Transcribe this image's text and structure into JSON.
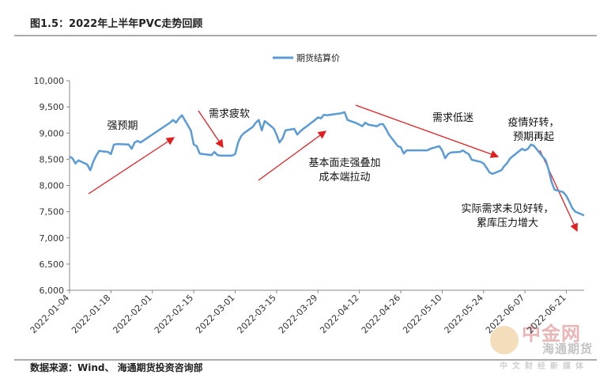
{
  "chart_data": {
    "type": "line",
    "title": "图1.5：2022年上半年PVC走势回顾",
    "source": "数据来源：Wind、 海通期货投资咨询部",
    "watermark": [
      "中金网",
      "海通期货",
      "中文财经新媒体"
    ],
    "x": [
      "2022-01-04",
      "2022-01-05",
      "2022-01-06",
      "2022-01-07",
      "2022-01-10",
      "2022-01-11",
      "2022-01-12",
      "2022-01-13",
      "2022-01-14",
      "2022-01-17",
      "2022-01-18",
      "2022-01-19",
      "2022-01-20",
      "2022-01-21",
      "2022-01-24",
      "2022-01-25",
      "2022-01-26",
      "2022-01-27",
      "2022-01-28",
      "2022-02-07",
      "2022-02-08",
      "2022-02-09",
      "2022-02-10",
      "2022-02-11",
      "2022-02-14",
      "2022-02-15",
      "2022-02-16",
      "2022-02-17",
      "2022-02-18",
      "2022-02-21",
      "2022-02-22",
      "2022-02-23",
      "2022-02-24",
      "2022-02-25",
      "2022-02-28",
      "2022-03-01",
      "2022-03-02",
      "2022-03-03",
      "2022-03-04",
      "2022-03-07",
      "2022-03-08",
      "2022-03-09",
      "2022-03-10",
      "2022-03-11",
      "2022-03-14",
      "2022-03-15",
      "2022-03-16",
      "2022-03-17",
      "2022-03-18",
      "2022-03-21",
      "2022-03-22",
      "2022-03-23",
      "2022-03-24",
      "2022-03-25",
      "2022-03-28",
      "2022-03-29",
      "2022-03-30",
      "2022-03-31",
      "2022-04-01",
      "2022-04-06",
      "2022-04-07",
      "2022-04-08",
      "2022-04-11",
      "2022-04-12",
      "2022-04-13",
      "2022-04-14",
      "2022-04-15",
      "2022-04-18",
      "2022-04-19",
      "2022-04-20",
      "2022-04-21",
      "2022-04-22",
      "2022-04-25",
      "2022-04-26",
      "2022-04-27",
      "2022-04-28",
      "2022-04-29",
      "2022-05-05",
      "2022-05-06",
      "2022-05-09",
      "2022-05-10",
      "2022-05-11",
      "2022-05-12",
      "2022-05-13",
      "2022-05-16",
      "2022-05-17",
      "2022-05-18",
      "2022-05-19",
      "2022-05-20",
      "2022-05-23",
      "2022-05-24",
      "2022-05-25",
      "2022-05-26",
      "2022-05-27",
      "2022-05-30",
      "2022-05-31",
      "2022-06-01",
      "2022-06-02",
      "2022-06-06",
      "2022-06-07",
      "2022-06-08",
      "2022-06-09",
      "2022-06-10",
      "2022-06-13",
      "2022-06-14",
      "2022-06-15",
      "2022-06-16",
      "2022-06-17",
      "2022-06-20",
      "2022-06-21",
      "2022-06-22",
      "2022-06-23",
      "2022-06-24",
      "2022-06-27"
    ],
    "series": [
      {
        "name": "期货结算价",
        "color": "#5b9bd5",
        "values": [
          8550,
          8520,
          8420,
          8480,
          8400,
          8290,
          8450,
          8570,
          8660,
          8640,
          8600,
          8780,
          8790,
          8790,
          8780,
          8700,
          8820,
          8850,
          8820,
          9200,
          9250,
          9200,
          9280,
          9340,
          9050,
          8780,
          8750,
          8610,
          8600,
          8580,
          8640,
          8580,
          8570,
          8570,
          8570,
          8600,
          8820,
          8940,
          9000,
          9120,
          9200,
          9250,
          9050,
          9230,
          9090,
          8970,
          8820,
          8900,
          9050,
          9080,
          8970,
          9030,
          9080,
          9120,
          9250,
          9300,
          9280,
          9350,
          9340,
          9380,
          9400,
          9250,
          9190,
          9160,
          9130,
          9200,
          9160,
          9130,
          9170,
          9170,
          9080,
          8970,
          8750,
          8730,
          8610,
          8670,
          8670,
          8670,
          8700,
          8750,
          8670,
          8520,
          8600,
          8630,
          8640,
          8670,
          8630,
          8600,
          8490,
          8450,
          8420,
          8340,
          8250,
          8220,
          8290,
          8370,
          8430,
          8520,
          8700,
          8670,
          8700,
          8780,
          8760,
          8550,
          8480,
          8300,
          8070,
          7920,
          7870,
          7800,
          7690,
          7570,
          7500,
          7430
        ]
      }
    ],
    "xlim": [
      "2022-01-04",
      "2022-06-27"
    ],
    "xticks": [
      "2022-01-04",
      "2022-01-18",
      "2022-02-01",
      "2022-02-15",
      "2022-03-01",
      "2022-03-15",
      "2022-03-29",
      "2022-04-12",
      "2022-04-26",
      "2022-05-10",
      "2022-05-24",
      "2022-06-07",
      "2022-06-21"
    ],
    "ylim": [
      6000,
      10000
    ],
    "yticks": [
      {
        "value": 6000,
        "label": "6,000"
      },
      {
        "value": 6500,
        "label": "6,500"
      },
      {
        "value": 7000,
        "label": "7,000"
      },
      {
        "value": 7500,
        "label": "7,500"
      },
      {
        "value": 8000,
        "label": "8,000"
      },
      {
        "value": 8500,
        "label": "8,500"
      },
      {
        "value": 9000,
        "label": "9,000"
      },
      {
        "value": 9500,
        "label": "9,500"
      },
      {
        "value": 10000,
        "label": "10,000"
      }
    ],
    "legend": "top",
    "annotations": [
      [
        "强预期"
      ],
      [
        "需求疲软"
      ],
      [
        "基本面走强叠加",
        "成本端拉动"
      ],
      [
        "需求低迷"
      ],
      [
        "疫情好转，",
        "预期再起"
      ],
      [
        "实际需求未见好转，",
        "累库压力增大"
      ]
    ]
  }
}
